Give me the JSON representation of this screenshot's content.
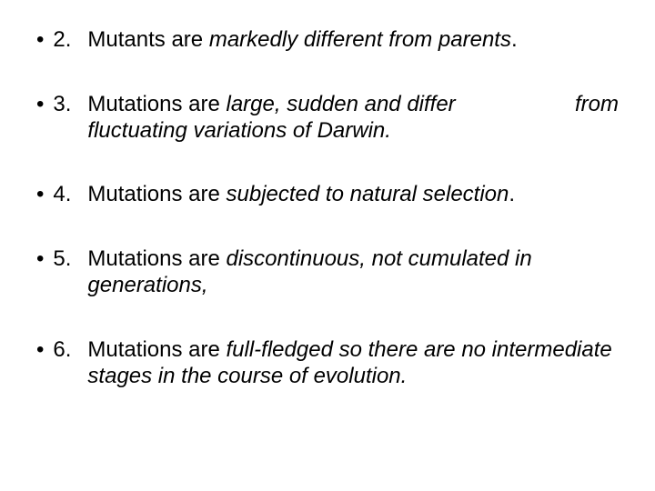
{
  "items": [
    {
      "number": "2.",
      "prefix": "Mutants are ",
      "italic": "markedly different from parents",
      "suffix": "."
    },
    {
      "number": "3.",
      "prefix": "Mutations are ",
      "italic_a": "large, sudden and differ",
      "italic_from": "from",
      "italic_b": "fluctuating variations of Darwin."
    },
    {
      "number": "4.",
      "prefix": "Mutations are ",
      "italic": "subjected to natural selection",
      "suffix": "."
    },
    {
      "number": "5.",
      "prefix": "Mutations are ",
      "italic": "discontinuous, not cumulated in generations,"
    },
    {
      "number": "6.",
      "prefix": "Mutations are ",
      "italic": "full-fledged so there are no intermediate stages in the course of evolution."
    }
  ],
  "styles": {
    "font_size": 24,
    "text_color": "#000000",
    "background": "#ffffff"
  }
}
